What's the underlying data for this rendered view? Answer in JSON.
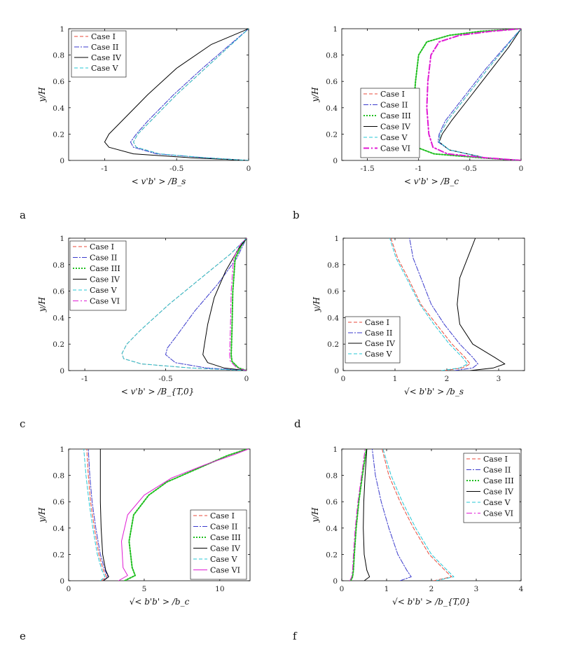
{
  "chart_data": [
    {
      "panel": "a",
      "type": "line",
      "xlabel": "< v'b' > /B_s",
      "ylabel": "y/H",
      "xlim": [
        -1.25,
        0
      ],
      "ylim": [
        0,
        1
      ],
      "xticks": [
        -1,
        -0.5,
        0
      ],
      "yticks": [
        0,
        0.2,
        0.4,
        0.6,
        0.8,
        1
      ],
      "legend_position": "top-left",
      "series": [
        {
          "name": "Case I",
          "color": "#e8493a",
          "dash": "5,3",
          "width": 1,
          "x": [
            0,
            -0.3,
            -0.62,
            -0.78,
            -0.8,
            -0.77,
            -0.68,
            -0.5,
            -0.3,
            -0.14,
            0
          ],
          "y": [
            0,
            0.02,
            0.05,
            0.1,
            0.14,
            0.2,
            0.3,
            0.5,
            0.7,
            0.86,
            1
          ]
        },
        {
          "name": "Case II",
          "color": "#3a3acc",
          "dash": "7,2,2,2",
          "width": 1,
          "x": [
            0,
            -0.3,
            -0.64,
            -0.8,
            -0.82,
            -0.78,
            -0.7,
            -0.52,
            -0.32,
            -0.15,
            0
          ],
          "y": [
            0,
            0.02,
            0.05,
            0.1,
            0.14,
            0.2,
            0.3,
            0.5,
            0.7,
            0.86,
            1
          ]
        },
        {
          "name": "Case IV",
          "color": "#000000",
          "dash": "",
          "width": 1,
          "x": [
            0,
            -0.4,
            -0.8,
            -0.97,
            -1,
            -0.97,
            -0.88,
            -0.7,
            -0.5,
            -0.26,
            0
          ],
          "y": [
            0,
            0.02,
            0.05,
            0.1,
            0.14,
            0.2,
            0.3,
            0.5,
            0.7,
            0.88,
            1
          ]
        },
        {
          "name": "Case V",
          "color": "#26c7d6",
          "dash": "5,3",
          "width": 1,
          "x": [
            0,
            -0.3,
            -0.62,
            -0.78,
            -0.8,
            -0.77,
            -0.68,
            -0.5,
            -0.3,
            -0.14,
            0
          ],
          "y": [
            0,
            0.02,
            0.05,
            0.1,
            0.14,
            0.2,
            0.3,
            0.5,
            0.7,
            0.86,
            1
          ]
        }
      ]
    },
    {
      "panel": "b",
      "type": "line",
      "xlabel": "< v'b' > /B_c",
      "ylabel": "y/H",
      "xlim": [
        -1.75,
        0
      ],
      "ylim": [
        0,
        1
      ],
      "xticks": [
        -1.5,
        -1,
        -0.5,
        0
      ],
      "yticks": [
        0,
        0.2,
        0.4,
        0.6,
        0.8,
        1
      ],
      "legend_position": "center-left",
      "series": [
        {
          "name": "Case I",
          "color": "#e8493a",
          "dash": "5,3",
          "width": 1,
          "x": [
            0,
            -0.35,
            -0.7,
            -0.8,
            -0.79,
            -0.72,
            -0.52,
            -0.32,
            -0.15,
            0
          ],
          "y": [
            0,
            0.02,
            0.08,
            0.14,
            0.2,
            0.3,
            0.5,
            0.7,
            0.86,
            1
          ]
        },
        {
          "name": "Case II",
          "color": "#3a3acc",
          "dash": "7,2,2,2",
          "width": 1,
          "x": [
            0,
            -0.35,
            -0.7,
            -0.81,
            -0.8,
            -0.74,
            -0.54,
            -0.34,
            -0.16,
            0
          ],
          "y": [
            0,
            0.02,
            0.08,
            0.14,
            0.2,
            0.3,
            0.5,
            0.7,
            0.86,
            1
          ]
        },
        {
          "name": "Case III",
          "color": "#1fbf1f",
          "dash": "2,2",
          "width": 2,
          "x": [
            0,
            -0.4,
            -0.85,
            -1.02,
            -1.06,
            -1.05,
            -1.03,
            -1.0,
            -0.92,
            -0.7,
            -0.4,
            0
          ],
          "y": [
            0,
            0.02,
            0.05,
            0.1,
            0.2,
            0.4,
            0.6,
            0.8,
            0.9,
            0.95,
            0.98,
            1
          ]
        },
        {
          "name": "Case IV",
          "color": "#000000",
          "dash": "",
          "width": 1,
          "x": [
            0,
            -0.35,
            -0.7,
            -0.8,
            -0.77,
            -0.68,
            -0.48,
            -0.28,
            -0.12,
            0
          ],
          "y": [
            0,
            0.02,
            0.08,
            0.14,
            0.2,
            0.3,
            0.5,
            0.7,
            0.86,
            1
          ]
        },
        {
          "name": "Case V",
          "color": "#26c7d6",
          "dash": "5,3",
          "width": 1,
          "x": [
            0,
            -0.35,
            -0.7,
            -0.8,
            -0.79,
            -0.72,
            -0.52,
            -0.32,
            -0.15,
            0
          ],
          "y": [
            0,
            0.02,
            0.08,
            0.14,
            0.2,
            0.3,
            0.5,
            0.7,
            0.86,
            1
          ]
        },
        {
          "name": "Case VI",
          "color": "#e01ad4",
          "dash": "8,3,2,3",
          "width": 2,
          "x": [
            0,
            -0.35,
            -0.72,
            -0.86,
            -0.9,
            -0.92,
            -0.91,
            -0.88,
            -0.8,
            -0.6,
            -0.3,
            0
          ],
          "y": [
            0,
            0.02,
            0.05,
            0.1,
            0.2,
            0.4,
            0.6,
            0.8,
            0.9,
            0.95,
            0.98,
            1
          ]
        }
      ]
    },
    {
      "panel": "c",
      "type": "line",
      "xlabel": "< v'b' > /B_{T,0}",
      "ylabel": "y/H",
      "xlim": [
        -1.1,
        0
      ],
      "ylim": [
        0,
        1
      ],
      "xticks": [
        -1,
        -0.5,
        0
      ],
      "yticks": [
        0,
        0.2,
        0.4,
        0.6,
        0.8,
        1
      ],
      "legend_position": "top-left",
      "series": [
        {
          "name": "Case I",
          "color": "#e8493a",
          "dash": "5,3",
          "width": 1,
          "x": [
            0,
            -0.35,
            -0.65,
            -0.76,
            -0.77,
            -0.74,
            -0.66,
            -0.48,
            -0.28,
            -0.1,
            0
          ],
          "y": [
            0,
            0.02,
            0.05,
            0.09,
            0.13,
            0.2,
            0.3,
            0.5,
            0.7,
            0.88,
            1
          ]
        },
        {
          "name": "Case II",
          "color": "#3a3acc",
          "dash": "7,2,2,2",
          "width": 1,
          "x": [
            0,
            -0.25,
            -0.44,
            -0.5,
            -0.49,
            -0.44,
            -0.32,
            -0.18,
            -0.06,
            0
          ],
          "y": [
            0,
            0.02,
            0.06,
            0.12,
            0.17,
            0.25,
            0.45,
            0.65,
            0.85,
            1
          ]
        },
        {
          "name": "Case III",
          "color": "#1fbf1f",
          "dash": "2,2",
          "width": 2,
          "x": [
            0,
            -0.05,
            -0.09,
            -0.095,
            -0.09,
            -0.085,
            -0.07,
            -0.03,
            0
          ],
          "y": [
            0,
            0.02,
            0.07,
            0.12,
            0.3,
            0.6,
            0.85,
            0.95,
            1
          ]
        },
        {
          "name": "Case IV",
          "color": "#000000",
          "dash": "",
          "width": 1,
          "x": [
            0,
            -0.14,
            -0.24,
            -0.27,
            -0.26,
            -0.24,
            -0.2,
            -0.13,
            -0.05,
            0
          ],
          "y": [
            0,
            0.02,
            0.06,
            0.12,
            0.2,
            0.35,
            0.55,
            0.75,
            0.92,
            1
          ]
        },
        {
          "name": "Case V",
          "color": "#26c7d6",
          "dash": "5,3",
          "width": 1,
          "x": [
            0,
            -0.35,
            -0.65,
            -0.76,
            -0.77,
            -0.74,
            -0.66,
            -0.48,
            -0.28,
            -0.1,
            0
          ],
          "y": [
            0,
            0.02,
            0.05,
            0.09,
            0.13,
            0.2,
            0.3,
            0.5,
            0.7,
            0.88,
            1
          ]
        },
        {
          "name": "Case VI",
          "color": "#e01ad4",
          "dash": "8,3,2,3",
          "width": 1,
          "x": [
            0,
            -0.06,
            -0.1,
            -0.105,
            -0.1,
            -0.095,
            -0.08,
            -0.04,
            0
          ],
          "y": [
            0,
            0.02,
            0.07,
            0.12,
            0.3,
            0.6,
            0.85,
            0.95,
            1
          ]
        }
      ]
    },
    {
      "panel": "d",
      "type": "line",
      "xlabel": "√< b'b' > /b_s",
      "ylabel": "y/H",
      "xlim": [
        0,
        3.5
      ],
      "ylim": [
        0,
        1
      ],
      "xticks": [
        0,
        1,
        2,
        3
      ],
      "yticks": [
        0,
        0.2,
        0.4,
        0.6,
        0.8,
        1
      ],
      "legend_position": "bottom-left",
      "series": [
        {
          "name": "Case I",
          "color": "#e8493a",
          "dash": "5,3",
          "width": 1,
          "x": [
            1.95,
            2.3,
            2.45,
            2.35,
            2.1,
            1.8,
            1.5,
            1.25,
            1.05,
            0.92
          ],
          "y": [
            0,
            0.02,
            0.05,
            0.1,
            0.2,
            0.35,
            0.5,
            0.7,
            0.85,
            1
          ]
        },
        {
          "name": "Case II",
          "color": "#3a3acc",
          "dash": "7,2,2,2",
          "width": 1,
          "x": [
            2.15,
            2.5,
            2.6,
            2.5,
            2.25,
            1.95,
            1.7,
            1.5,
            1.35,
            1.28
          ],
          "y": [
            0,
            0.02,
            0.05,
            0.1,
            0.2,
            0.35,
            0.5,
            0.7,
            0.85,
            1
          ]
        },
        {
          "name": "Case IV",
          "color": "#000000",
          "dash": "",
          "width": 1,
          "x": [
            2.45,
            2.9,
            3.12,
            2.92,
            2.5,
            2.25,
            2.2,
            2.25,
            2.4,
            2.55
          ],
          "y": [
            0,
            0.02,
            0.05,
            0.1,
            0.2,
            0.35,
            0.5,
            0.7,
            0.85,
            1
          ]
        },
        {
          "name": "Case V",
          "color": "#26c7d6",
          "dash": "5,3",
          "width": 1,
          "x": [
            1.9,
            2.25,
            2.4,
            2.3,
            2.05,
            1.75,
            1.48,
            1.22,
            1.02,
            0.9
          ],
          "y": [
            0,
            0.02,
            0.05,
            0.1,
            0.2,
            0.35,
            0.5,
            0.7,
            0.85,
            1
          ]
        }
      ]
    },
    {
      "panel": "e",
      "type": "line",
      "xlabel": "√< b'b' > /b_c",
      "ylabel": "y/H",
      "xlim": [
        0,
        12
      ],
      "ylim": [
        0,
        1
      ],
      "xticks": [
        0,
        5,
        10
      ],
      "yticks": [
        0,
        0.2,
        0.4,
        0.6,
        0.8,
        1
      ],
      "legend_position": "bottom-right",
      "series": [
        {
          "name": "Case I",
          "color": "#e8493a",
          "dash": "5,3",
          "width": 1,
          "x": [
            2.2,
            2.5,
            2.3,
            2.0,
            1.7,
            1.45,
            1.3,
            1.2
          ],
          "y": [
            0,
            0.03,
            0.08,
            0.2,
            0.4,
            0.6,
            0.8,
            1
          ]
        },
        {
          "name": "Case II",
          "color": "#3a3acc",
          "dash": "7,2,2,2",
          "width": 1,
          "x": [
            2.3,
            2.6,
            2.4,
            2.1,
            1.8,
            1.55,
            1.4,
            1.3
          ],
          "y": [
            0,
            0.03,
            0.08,
            0.2,
            0.4,
            0.6,
            0.8,
            1
          ]
        },
        {
          "name": "Case III",
          "color": "#1fbf1f",
          "dash": "2,2",
          "width": 2,
          "x": [
            3.7,
            4.4,
            4.2,
            4.0,
            4.3,
            5.3,
            6.5,
            8.5,
            10.5,
            11.8
          ],
          "y": [
            0,
            0.04,
            0.1,
            0.3,
            0.5,
            0.65,
            0.75,
            0.85,
            0.95,
            1
          ]
        },
        {
          "name": "Case IV",
          "color": "#000000",
          "dash": "",
          "width": 1,
          "x": [
            2.3,
            2.65,
            2.45,
            2.25,
            2.15,
            2.1,
            2.1,
            2.1
          ],
          "y": [
            0,
            0.03,
            0.08,
            0.2,
            0.4,
            0.6,
            0.8,
            1
          ]
        },
        {
          "name": "Case V",
          "color": "#26c7d6",
          "dash": "5,3",
          "width": 1,
          "x": [
            2.1,
            2.4,
            2.2,
            1.9,
            1.6,
            1.35,
            1.15,
            1.0
          ],
          "y": [
            0,
            0.03,
            0.08,
            0.2,
            0.4,
            0.6,
            0.8,
            1
          ]
        },
        {
          "name": "Case VI",
          "color": "#e01ad4",
          "dash": "",
          "width": 1,
          "x": [
            3.3,
            3.9,
            3.6,
            3.5,
            3.9,
            5.0,
            6.8,
            9.0,
            11.0,
            11.9
          ],
          "y": [
            0,
            0.04,
            0.1,
            0.3,
            0.5,
            0.65,
            0.78,
            0.88,
            0.96,
            1
          ]
        }
      ]
    },
    {
      "panel": "f",
      "type": "line",
      "xlabel": "√< b'b' > /b_{T,0}",
      "ylabel": "y/H",
      "xlim": [
        0,
        4
      ],
      "ylim": [
        0,
        1
      ],
      "xticks": [
        0,
        1,
        2,
        3,
        4
      ],
      "yticks": [
        0,
        0.2,
        0.4,
        0.6,
        0.8,
        1
      ],
      "legend_position": "top-right",
      "series": [
        {
          "name": "Case I",
          "color": "#e8493a",
          "dash": "5,3",
          "width": 1,
          "x": [
            2.05,
            2.45,
            2.3,
            1.95,
            1.6,
            1.3,
            1.05,
            0.9
          ],
          "y": [
            0,
            0.03,
            0.08,
            0.2,
            0.4,
            0.6,
            0.8,
            1
          ]
        },
        {
          "name": "Case II",
          "color": "#3a3acc",
          "dash": "7,2,2,2",
          "width": 1,
          "x": [
            1.3,
            1.55,
            1.45,
            1.25,
            1.05,
            0.88,
            0.75,
            0.68
          ],
          "y": [
            0,
            0.03,
            0.08,
            0.2,
            0.4,
            0.6,
            0.8,
            1
          ]
        },
        {
          "name": "Case III",
          "color": "#1fbf1f",
          "dash": "2,2",
          "width": 2,
          "x": [
            0.2,
            0.24,
            0.26,
            0.28,
            0.32,
            0.38,
            0.46,
            0.55
          ],
          "y": [
            0,
            0.03,
            0.08,
            0.2,
            0.4,
            0.6,
            0.8,
            1
          ]
        },
        {
          "name": "Case IV",
          "color": "#000000",
          "dash": "",
          "width": 1,
          "x": [
            0.5,
            0.62,
            0.56,
            0.5,
            0.48,
            0.49,
            0.52,
            0.56
          ],
          "y": [
            0,
            0.03,
            0.08,
            0.2,
            0.4,
            0.6,
            0.8,
            1
          ]
        },
        {
          "name": "Case V",
          "color": "#26c7d6",
          "dash": "5,3",
          "width": 1,
          "x": [
            2.1,
            2.5,
            2.35,
            2.0,
            1.65,
            1.35,
            1.1,
            0.92
          ],
          "y": [
            0,
            0.03,
            0.08,
            0.2,
            0.4,
            0.6,
            0.8,
            1
          ]
        },
        {
          "name": "Case VI",
          "color": "#e01ad4",
          "dash": "8,3,2,3",
          "width": 1,
          "x": [
            0.18,
            0.22,
            0.24,
            0.26,
            0.3,
            0.36,
            0.44,
            0.52
          ],
          "y": [
            0,
            0.03,
            0.08,
            0.2,
            0.4,
            0.6,
            0.8,
            1
          ]
        }
      ]
    }
  ],
  "panel_letters": [
    "a",
    "b",
    "c",
    "d",
    "e",
    "f"
  ]
}
